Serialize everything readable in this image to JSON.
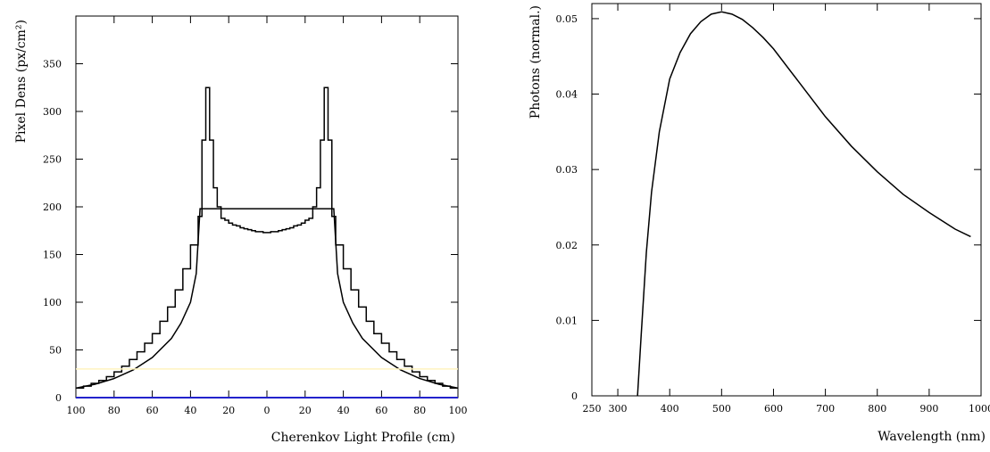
{
  "chart_data": [
    {
      "type": "line",
      "xlabel": "Cherenkov Light Profile (cm)",
      "ylabel": "Pixel Dens (px/cm²)",
      "xlim": [
        -100,
        100
      ],
      "ylim": [
        0,
        400
      ],
      "x_ticks": [
        -100,
        -80,
        -60,
        -40,
        -20,
        0,
        20,
        40,
        60,
        80,
        100
      ],
      "x_tick_labels": [
        "100",
        "80",
        "60",
        "40",
        "20",
        "0",
        "20",
        "40",
        "60",
        "80",
        "100"
      ],
      "y_ticks": [
        0,
        50,
        100,
        150,
        200,
        250,
        300,
        350
      ],
      "y_tick_labels": [
        "0",
        "50",
        "100",
        "150",
        "200",
        "250",
        "300",
        "350"
      ],
      "grid": false,
      "series": [
        {
          "kind": "step",
          "color": "#000000",
          "x": [
            -100,
            -96,
            -92,
            -88,
            -84,
            -80,
            -76,
            -72,
            -68,
            -64,
            -60,
            -56,
            -52,
            -48,
            -44,
            -40,
            -36,
            -34,
            -32,
            -30,
            -28,
            -26,
            -24,
            -22,
            -20,
            -18,
            -16,
            -14,
            -12,
            -10,
            -8,
            -6,
            -4,
            -2,
            0,
            2,
            4,
            6,
            8,
            10,
            12,
            14,
            16,
            18,
            20,
            22,
            24,
            26,
            28,
            30,
            32,
            34,
            36,
            40,
            44,
            48,
            52,
            56,
            60,
            64,
            68,
            72,
            76,
            80,
            84,
            88,
            92,
            96,
            100
          ],
          "y": [
            10,
            12,
            15,
            18,
            22,
            27,
            33,
            40,
            48,
            57,
            67,
            80,
            95,
            113,
            135,
            160,
            190,
            270,
            325,
            270,
            220,
            200,
            188,
            186,
            183,
            181,
            180,
            178,
            177,
            176,
            175,
            174,
            174,
            173,
            173,
            174,
            174,
            175,
            176,
            177,
            178,
            180,
            181,
            183,
            186,
            188,
            200,
            220,
            270,
            325,
            270,
            190,
            160,
            135,
            113,
            95,
            80,
            67,
            57,
            48,
            40,
            33,
            27,
            22,
            18,
            15,
            12,
            10,
            10
          ]
        },
        {
          "kind": "line",
          "color": "#000000",
          "x": [
            -100,
            -90,
            -80,
            -70,
            -60,
            -50,
            -45,
            -40,
            -37,
            -35,
            35,
            37,
            40,
            45,
            50,
            60,
            70,
            80,
            90,
            100
          ],
          "y": [
            10,
            14,
            20,
            29,
            42,
            62,
            78,
            100,
            130,
            198,
            198,
            130,
            100,
            78,
            62,
            42,
            29,
            20,
            14,
            10
          ]
        },
        {
          "kind": "line",
          "color": "#fff3bf",
          "x": [
            -100,
            100
          ],
          "y": [
            30,
            30
          ]
        },
        {
          "kind": "line",
          "color": "#2222cc",
          "x": [
            -100,
            100
          ],
          "y": [
            0,
            0
          ]
        }
      ]
    },
    {
      "type": "line",
      "xlabel": "Wavelength (nm)",
      "ylabel": "Photons (normal.)",
      "xlim": [
        250,
        1000
      ],
      "ylim": [
        0,
        0.052
      ],
      "x_ticks": [
        250,
        300,
        400,
        500,
        600,
        700,
        800,
        900,
        1000
      ],
      "x_tick_labels": [
        "250",
        "300",
        "400",
        "500",
        "600",
        "700",
        "800",
        "900",
        "1000"
      ],
      "y_ticks": [
        0,
        0.01,
        0.02,
        0.03,
        0.04,
        0.05
      ],
      "y_tick_labels": [
        "0",
        "0.01",
        "0.02",
        "0.03",
        "0.04",
        "0.05"
      ],
      "grid": false,
      "series": [
        {
          "kind": "line",
          "color": "#000000",
          "x": [
            338,
            345,
            355,
            365,
            380,
            400,
            420,
            440,
            460,
            480,
            500,
            520,
            540,
            560,
            580,
            600,
            650,
            700,
            750,
            800,
            850,
            900,
            950,
            980
          ],
          "y": [
            0,
            0.008,
            0.019,
            0.027,
            0.035,
            0.042,
            0.0455,
            0.048,
            0.0496,
            0.0506,
            0.0509,
            0.0506,
            0.0499,
            0.0488,
            0.0475,
            0.046,
            0.0415,
            0.037,
            0.0331,
            0.0297,
            0.0267,
            0.0243,
            0.0221,
            0.0211
          ]
        }
      ]
    }
  ]
}
